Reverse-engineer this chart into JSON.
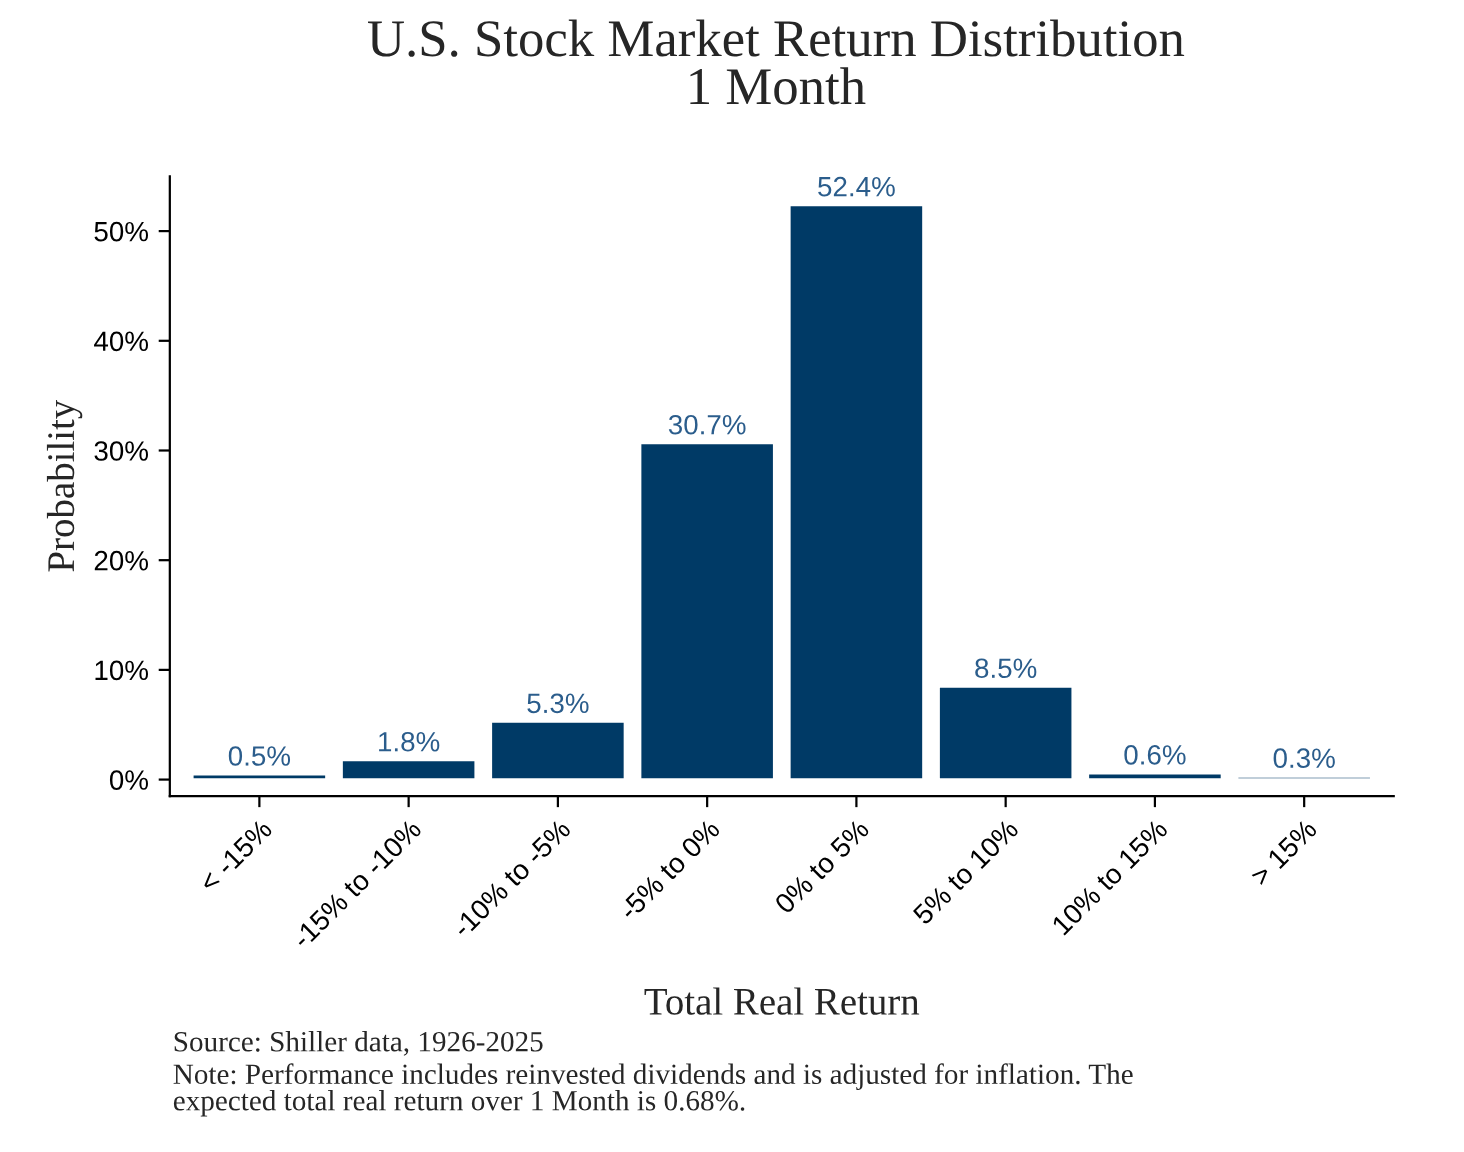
{
  "chart_data": {
    "type": "bar",
    "title": "U.S. Stock Market Return Distribution\n1 Month",
    "xlabel": "Total Real Return",
    "ylabel": "Probability",
    "categories": [
      "< -15%",
      "-15% to -10%",
      "-10% to -5%",
      "-5% to 0%",
      "0% to 5%",
      "5% to 10%",
      "10% to 15%",
      "> 15%"
    ],
    "values": [
      0.5,
      1.8,
      5.3,
      30.7,
      52.4,
      8.5,
      0.6,
      0.3
    ],
    "value_labels": [
      "0.5%",
      "1.8%",
      "5.3%",
      "30.7%",
      "52.4%",
      "8.5%",
      "0.6%",
      "0.3%"
    ],
    "color": "#003a66",
    "ylim": [
      -1.5,
      55
    ],
    "yticks": [
      {
        "value": 0,
        "label": "0%"
      },
      {
        "value": 10,
        "label": "10%"
      },
      {
        "value": 20,
        "label": "20%"
      },
      {
        "value": 30,
        "label": "30%"
      },
      {
        "value": 40,
        "label": "40%"
      },
      {
        "value": 50,
        "label": "50%"
      }
    ],
    "grid": false,
    "legend": false,
    "annotations": [
      "Source: Shiller data, 1926-2025",
      "Note: Performance includes reinvested dividends and is adjusted for inflation. The\nexpected total real return over 1 Month is 0.68%."
    ]
  }
}
